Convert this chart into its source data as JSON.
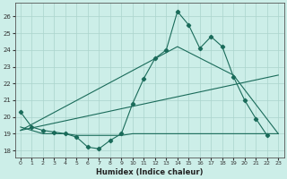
{
  "xlabel": "Humidex (Indice chaleur)",
  "bg_color": "#cceee8",
  "grid_color": "#aad4cc",
  "line_color": "#1a6b5a",
  "xlim": [
    -0.5,
    23.5
  ],
  "ylim": [
    17.6,
    26.8
  ],
  "yticks": [
    18,
    19,
    20,
    21,
    22,
    23,
    24,
    25,
    26
  ],
  "xticks": [
    0,
    1,
    2,
    3,
    4,
    5,
    6,
    7,
    8,
    9,
    10,
    11,
    12,
    13,
    14,
    15,
    16,
    17,
    18,
    19,
    20,
    21,
    22,
    23
  ],
  "line1_x": [
    0,
    1,
    2,
    3,
    4,
    5,
    6,
    7,
    8,
    9,
    10,
    11,
    12,
    13,
    14,
    15,
    16,
    17,
    18,
    19,
    20,
    21,
    22
  ],
  "line1_y": [
    20.3,
    19.4,
    19.2,
    19.1,
    19.0,
    18.8,
    18.2,
    18.1,
    18.6,
    19.0,
    20.8,
    22.3,
    23.5,
    24.0,
    26.3,
    25.5,
    24.1,
    24.8,
    24.2,
    22.4,
    21.0,
    19.9,
    18.9
  ],
  "line2_x": [
    0,
    1,
    2,
    3,
    4,
    5,
    6,
    7,
    8,
    9,
    10,
    11,
    12,
    13,
    14,
    15,
    16,
    17,
    18,
    19,
    20,
    21,
    22,
    23
  ],
  "line2_y": [
    19.4,
    19.2,
    19.0,
    19.0,
    19.0,
    18.9,
    18.9,
    18.9,
    18.9,
    18.9,
    19.0,
    19.0,
    19.0,
    19.0,
    19.0,
    19.0,
    19.0,
    19.0,
    19.0,
    19.0,
    19.0,
    19.0,
    19.0,
    19.0
  ],
  "line3_x": [
    0,
    14,
    19,
    23
  ],
  "line3_y": [
    19.2,
    24.2,
    22.5,
    19.0
  ],
  "line4_x": [
    0,
    23
  ],
  "line4_y": [
    19.2,
    22.5
  ]
}
